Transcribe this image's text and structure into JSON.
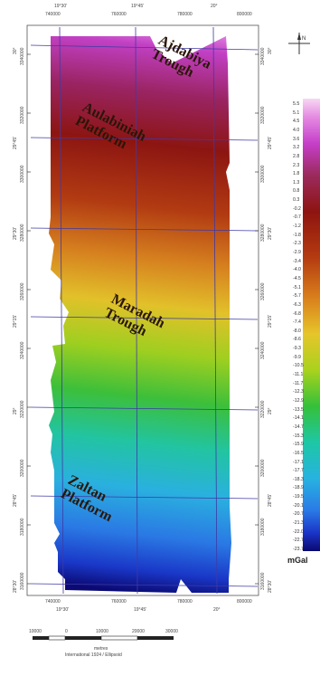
{
  "map": {
    "regions": [
      {
        "id": "aj",
        "text": "Ajdabiya\nTrough"
      },
      {
        "id": "au",
        "text": "Aulabiniah\nPlatform"
      },
      {
        "id": "ma",
        "text": "Maradah\nTrough"
      },
      {
        "id": "za",
        "text": "Zaltan\nPlatform"
      }
    ],
    "top_ticks_deg": [
      "19°30'",
      "19°45'",
      "20°"
    ],
    "top_ticks_m": [
      "740000",
      "760000",
      "780000",
      "800000"
    ],
    "bottom_ticks_m": [
      "740000",
      "760000",
      "780000",
      "800000"
    ],
    "bottom_ticks_deg": [
      "19°30'",
      "19°45'",
      "20°"
    ],
    "left_ticks_deg": [
      "30°",
      "29°45'",
      "29°30'",
      "29°15'",
      "29°",
      "28°45'",
      "28°30'"
    ],
    "left_ticks_m": [
      "3340000",
      "3320000",
      "3300000",
      "3280000",
      "3260000",
      "3240000",
      "3220000",
      "3200000",
      "3180000",
      "3160000"
    ],
    "right_ticks_m": [
      "3340000",
      "3320000",
      "3300000",
      "3280000",
      "3260000",
      "3240000",
      "3220000",
      "3200000",
      "3180000",
      "3160000"
    ],
    "right_ticks_deg": [
      "30°",
      "29°45'",
      "29°30'",
      "29°15'",
      "29°",
      "28°45'",
      "28°30'"
    ]
  },
  "legend": {
    "unit": "mGal",
    "values": [
      "5.5",
      "5.1",
      "4.5",
      "4.0",
      "3.6",
      "3.2",
      "2.8",
      "2.3",
      "1.8",
      "1.3",
      "0.8",
      "0.3",
      "-0.2",
      "-0.7",
      "-1.2",
      "-1.8",
      "-2.3",
      "-2.9",
      "-3.4",
      "-4.0",
      "-4.5",
      "-5.1",
      "-5.7",
      "-6.3",
      "-6.8",
      "-7.4",
      "-8.0",
      "-8.6",
      "-9.3",
      "-9.9",
      "-10.5",
      "-11.1",
      "-11.7",
      "-12.3",
      "-12.9",
      "-13.5",
      "-14.1",
      "-14.7",
      "-15.3",
      "-15.9",
      "-16.5",
      "-17.1",
      "-17.7",
      "-18.3",
      "-18.9",
      "-19.5",
      "-20.1",
      "-20.7",
      "-21.3",
      "-22.0",
      "-22.7",
      "-23.7"
    ]
  },
  "scale_bar": {
    "labels": [
      "10000",
      "0",
      "10000",
      "20000",
      "30000"
    ],
    "unit": "metres",
    "projection": "International 1924 / Ellipsoid"
  },
  "north_arrow": {
    "label": "N",
    "icon": "north-arrow-icon"
  },
  "colors": {
    "high": "#c53ec8",
    "low": "#0a0870",
    "grid": "#3f3aa6"
  }
}
